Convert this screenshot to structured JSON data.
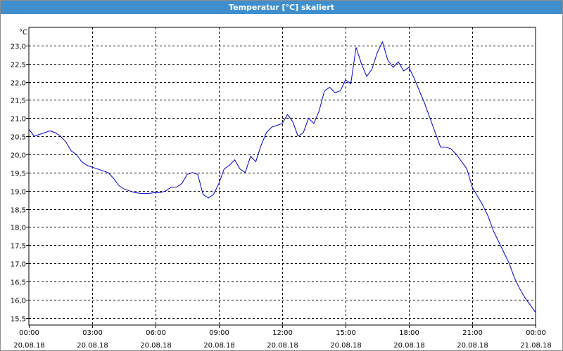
{
  "window": {
    "title": "Temperatur [°C] skaliert"
  },
  "chart_data": {
    "type": "line",
    "title": "Temperatur [°C] skaliert",
    "ylabel": "°C",
    "xlabel": "",
    "grid": true,
    "ylim": [
      15.3,
      23.5
    ],
    "xlim": [
      0,
      24
    ],
    "yticks": [
      "15,5",
      "16,0",
      "16,5",
      "17,0",
      "17,5",
      "18,0",
      "18,5",
      "19,0",
      "19,5",
      "20,0",
      "20,5",
      "21,0",
      "21,5",
      "22,0",
      "22,5",
      "23,0"
    ],
    "ytick_values": [
      15.5,
      16.0,
      16.5,
      17.0,
      17.5,
      18.0,
      18.5,
      19.0,
      19.5,
      20.0,
      20.5,
      21.0,
      21.5,
      22.0,
      22.5,
      23.0
    ],
    "xticks": [
      {
        "time": "00:00",
        "date": "20.08.18"
      },
      {
        "time": "03:00",
        "date": "20.08.18"
      },
      {
        "time": "06:00",
        "date": "20.08.18"
      },
      {
        "time": "09:00",
        "date": "20.08.18"
      },
      {
        "time": "12:00",
        "date": "20.08.18"
      },
      {
        "time": "15:00",
        "date": "20.08.18"
      },
      {
        "time": "18:00",
        "date": "20.08.18"
      },
      {
        "time": "21:00",
        "date": "20.08.18"
      },
      {
        "time": "00:00",
        "date": "21.08.18"
      }
    ],
    "series": [
      {
        "color": "#0000cc",
        "x": [
          0,
          0.25,
          0.5,
          0.75,
          1.0,
          1.25,
          1.5,
          1.75,
          2.0,
          2.25,
          2.5,
          2.75,
          3.0,
          3.25,
          3.5,
          3.75,
          4.0,
          4.25,
          4.5,
          4.75,
          5.0,
          5.25,
          5.5,
          5.75,
          6.0,
          6.25,
          6.5,
          6.75,
          7.0,
          7.25,
          7.5,
          7.75,
          8.0,
          8.25,
          8.5,
          8.75,
          9.0,
          9.25,
          9.5,
          9.75,
          10.0,
          10.25,
          10.5,
          10.75,
          11.0,
          11.25,
          11.5,
          11.75,
          12.0,
          12.25,
          12.5,
          12.75,
          13.0,
          13.25,
          13.5,
          13.75,
          14.0,
          14.25,
          14.5,
          14.75,
          15.0,
          15.25,
          15.5,
          15.75,
          16.0,
          16.25,
          16.5,
          16.75,
          17.0,
          17.25,
          17.5,
          17.75,
          18.0,
          18.25,
          18.5,
          18.75,
          19.0,
          19.25,
          19.5,
          19.75,
          20.0,
          20.25,
          20.5,
          20.75,
          21.0,
          21.25,
          21.5,
          21.75,
          22.0,
          22.25,
          22.5,
          22.75,
          23.0,
          23.25,
          23.5,
          23.75,
          24.0
        ],
        "y": [
          20.7,
          20.5,
          20.55,
          20.6,
          20.65,
          20.6,
          20.5,
          20.35,
          20.1,
          20.0,
          19.8,
          19.7,
          19.65,
          19.6,
          19.55,
          19.5,
          19.35,
          19.15,
          19.05,
          19.0,
          18.95,
          18.93,
          18.92,
          18.93,
          18.95,
          18.95,
          19.0,
          19.1,
          19.1,
          19.2,
          19.45,
          19.5,
          19.45,
          18.9,
          18.8,
          18.9,
          19.2,
          19.6,
          19.7,
          19.85,
          19.6,
          19.5,
          19.95,
          19.8,
          20.25,
          20.6,
          20.75,
          20.8,
          20.85,
          21.1,
          20.9,
          20.5,
          20.6,
          21.0,
          20.85,
          21.2,
          21.75,
          21.85,
          21.7,
          21.75,
          22.05,
          21.95,
          22.95,
          22.5,
          22.15,
          22.35,
          22.8,
          23.1,
          22.6,
          22.4,
          22.55,
          22.3,
          22.4,
          22.1,
          21.75,
          21.4,
          21.0,
          20.6,
          20.2,
          20.2,
          20.15,
          20.0,
          19.8,
          19.6,
          19.1,
          18.85,
          18.6,
          18.3,
          17.9,
          17.6,
          17.3,
          17.0,
          16.6,
          16.3,
          16.05,
          15.85,
          15.65
        ]
      }
    ]
  }
}
